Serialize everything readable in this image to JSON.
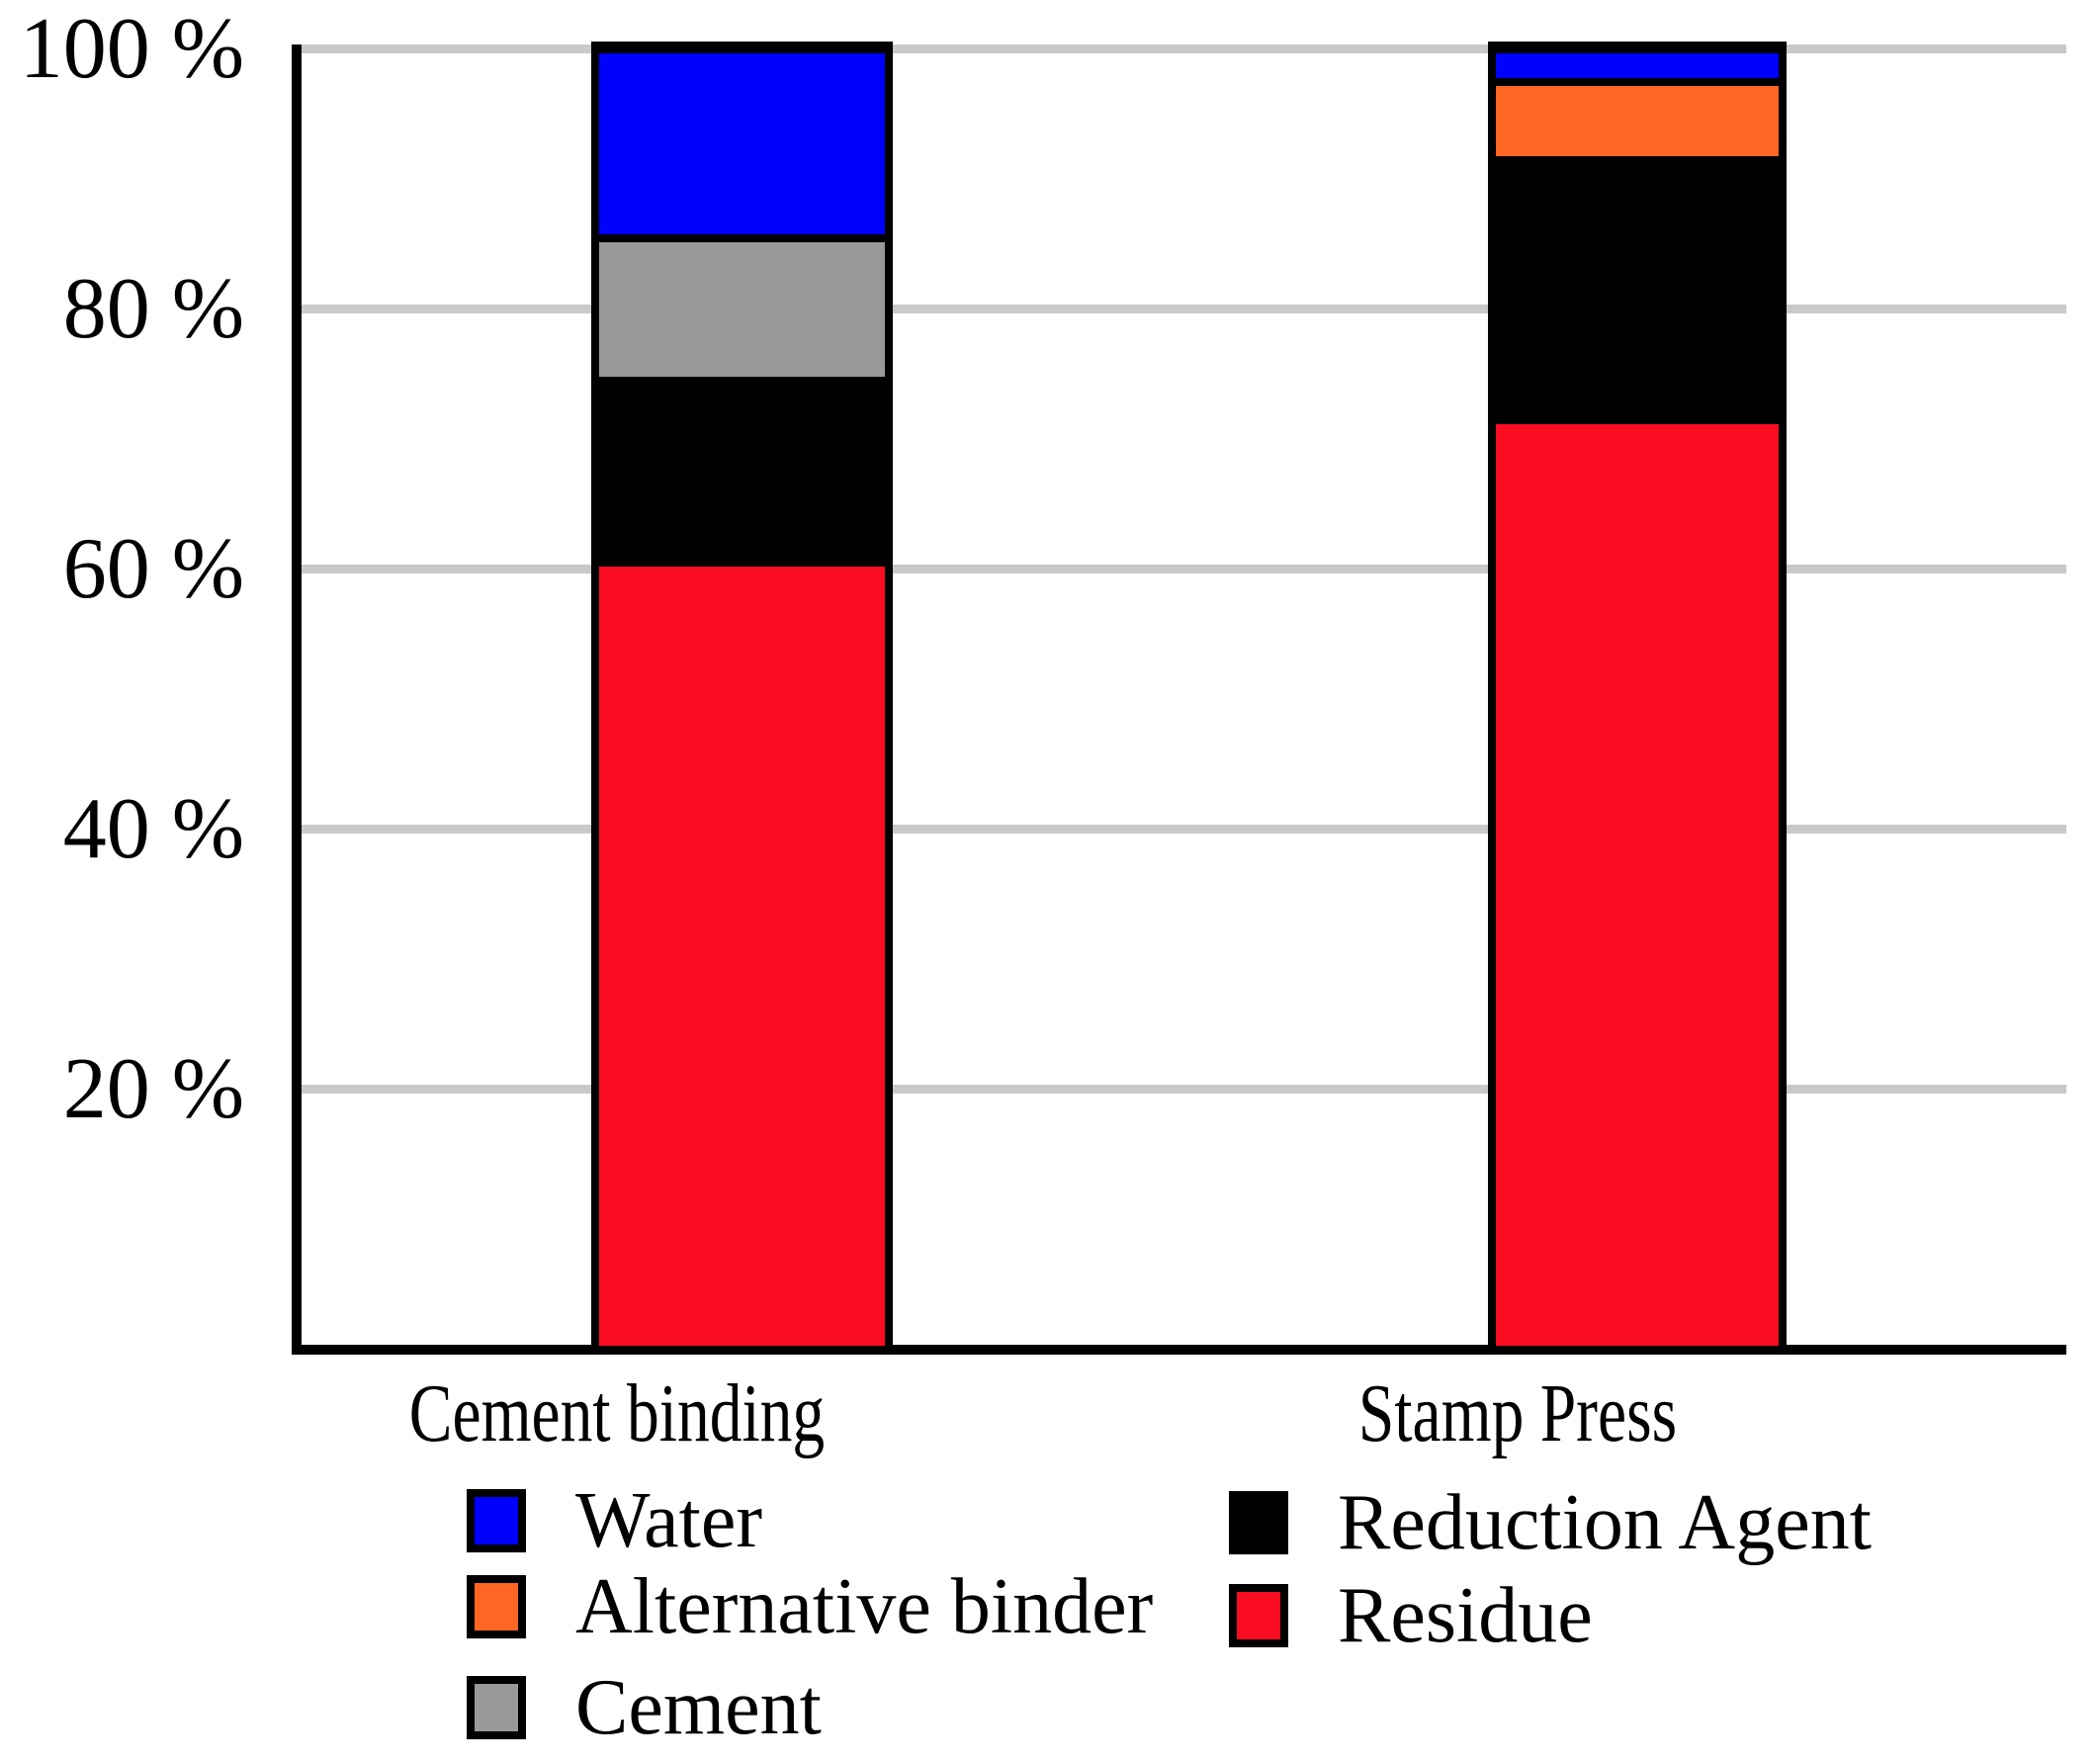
{
  "chart_data": {
    "type": "bar",
    "variant": "stacked_percent",
    "title": "",
    "units": "%",
    "categories": [
      "Cement binding",
      "Stamp Press"
    ],
    "series": [
      {
        "name": "Residue",
        "color": "#FB0D21",
        "values": [
          60.5,
          71.5
        ]
      },
      {
        "name": "Reduction Agent",
        "color": "#000000",
        "values": [
          14,
          20
        ]
      },
      {
        "name": "Cement",
        "color": "#999999",
        "values": [
          11,
          0
        ]
      },
      {
        "name": "Alternative binder",
        "color": "#FF6624",
        "values": [
          0,
          6
        ]
      },
      {
        "name": "Water",
        "color": "#0000FF",
        "values": [
          14.5,
          2.5
        ]
      }
    ],
    "y_axis": {
      "range": [
        0,
        100
      ],
      "grid": true,
      "gridline_color": "#C9C9C9",
      "ticks": [
        {
          "label": "100 %",
          "value": 100
        },
        {
          "label": "80 %",
          "value": 80
        },
        {
          "label": "60 %",
          "value": 60
        },
        {
          "label": "40 %",
          "value": 40
        },
        {
          "label": "20 %",
          "value": 20
        }
      ]
    },
    "legend_position": "bottom two-column"
  },
  "legend": {
    "columns": [
      [
        {
          "label": "Water",
          "color": "#0000FF"
        },
        {
          "label": "Alternative binder",
          "color": "#FF6624"
        },
        {
          "label": "Cement",
          "color": "#999999"
        }
      ],
      [
        {
          "label": "Reduction Agent",
          "color": "#000000"
        },
        {
          "label": "Residue",
          "color": "#FB0D21"
        }
      ]
    ]
  }
}
